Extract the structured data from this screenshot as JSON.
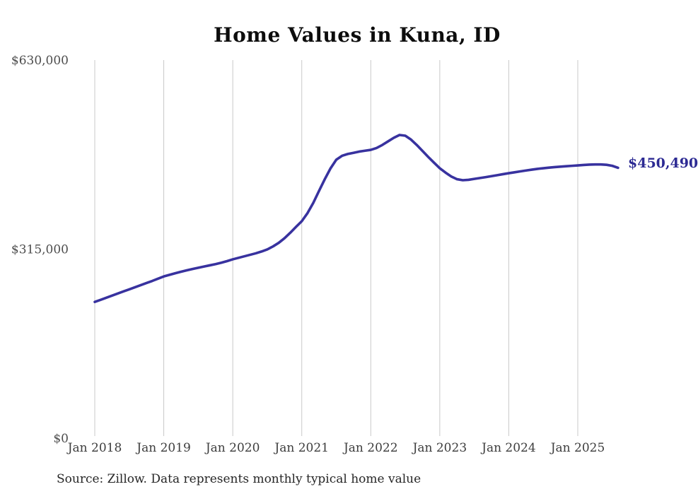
{
  "page": {
    "background": "#ffffff"
  },
  "colors": {
    "line": "#38329f",
    "value_label": "#2c2a93",
    "grid": "#c9c9c9",
    "title_text": "#0d0d0d",
    "x_tick_text": "#3d3d3d",
    "y_tick_text": "#4d4d4d",
    "source_text": "#262626"
  },
  "source_note": "Source: Zillow. Data represents monthly typical home value",
  "chart_data": {
    "type": "line",
    "title": "Home Values in Kuna, ID",
    "series_name": "Monthly typical home value",
    "latest_value_label": "$450,490",
    "latest_value": 450490,
    "ylim": [
      0,
      630000
    ],
    "grid": "vertical-only",
    "legend": "none",
    "y_ticks": [
      {
        "value": 0,
        "label": "$0"
      },
      {
        "value": 315000,
        "label": "$315,000"
      },
      {
        "value": 630000,
        "label": "$630,000"
      }
    ],
    "x_tick_labels": [
      "Jan 2018",
      "Jan 2019",
      "Jan 2020",
      "Jan 2021",
      "Jan 2022",
      "Jan 2023",
      "Jan 2024",
      "Jan 2025"
    ],
    "months": [
      "2018-01",
      "2018-02",
      "2018-03",
      "2018-04",
      "2018-05",
      "2018-06",
      "2018-07",
      "2018-08",
      "2018-09",
      "2018-10",
      "2018-11",
      "2018-12",
      "2019-01",
      "2019-02",
      "2019-03",
      "2019-04",
      "2019-05",
      "2019-06",
      "2019-07",
      "2019-08",
      "2019-09",
      "2019-10",
      "2019-11",
      "2019-12",
      "2020-01",
      "2020-02",
      "2020-03",
      "2020-04",
      "2020-05",
      "2020-06",
      "2020-07",
      "2020-08",
      "2020-09",
      "2020-10",
      "2020-11",
      "2020-12",
      "2021-01",
      "2021-02",
      "2021-03",
      "2021-04",
      "2021-05",
      "2021-06",
      "2021-07",
      "2021-08",
      "2021-09",
      "2021-10",
      "2021-11",
      "2021-12",
      "2022-01",
      "2022-02",
      "2022-03",
      "2022-04",
      "2022-05",
      "2022-06",
      "2022-07",
      "2022-08",
      "2022-09",
      "2022-10",
      "2022-11",
      "2022-12",
      "2023-01",
      "2023-02",
      "2023-03",
      "2023-04",
      "2023-05",
      "2023-06",
      "2023-07",
      "2023-08",
      "2023-09",
      "2023-10",
      "2023-11",
      "2023-12",
      "2024-01",
      "2024-02",
      "2024-03",
      "2024-04",
      "2024-05",
      "2024-06",
      "2024-07",
      "2024-08",
      "2024-09",
      "2024-10",
      "2024-11",
      "2024-12",
      "2025-01",
      "2025-02",
      "2025-03",
      "2025-04",
      "2025-05",
      "2025-06",
      "2025-07",
      "2025-08"
    ],
    "values": [
      227000,
      230500,
      234000,
      237500,
      241000,
      244500,
      248000,
      251500,
      255000,
      258500,
      262000,
      265800,
      269500,
      272200,
      274800,
      277300,
      279700,
      281900,
      284000,
      286000,
      288000,
      290000,
      292300,
      295000,
      298000,
      300500,
      303000,
      305500,
      308000,
      311000,
      314500,
      319500,
      325500,
      333200,
      342300,
      352100,
      361500,
      375000,
      392000,
      412000,
      431500,
      449500,
      464000,
      470500,
      473500,
      475500,
      477500,
      479000,
      480400,
      483500,
      488500,
      494500,
      500500,
      505200,
      504000,
      497500,
      488500,
      478500,
      468500,
      459000,
      449800,
      442500,
      436000,
      431500,
      429800,
      430500,
      432000,
      433500,
      435000,
      436600,
      438200,
      439900,
      441500,
      443000,
      444500,
      446000,
      447400,
      448700,
      449800,
      450800,
      451700,
      452400,
      453100,
      453800,
      454500,
      455200,
      455800,
      456100,
      456100,
      455500,
      453800,
      450490
    ]
  }
}
